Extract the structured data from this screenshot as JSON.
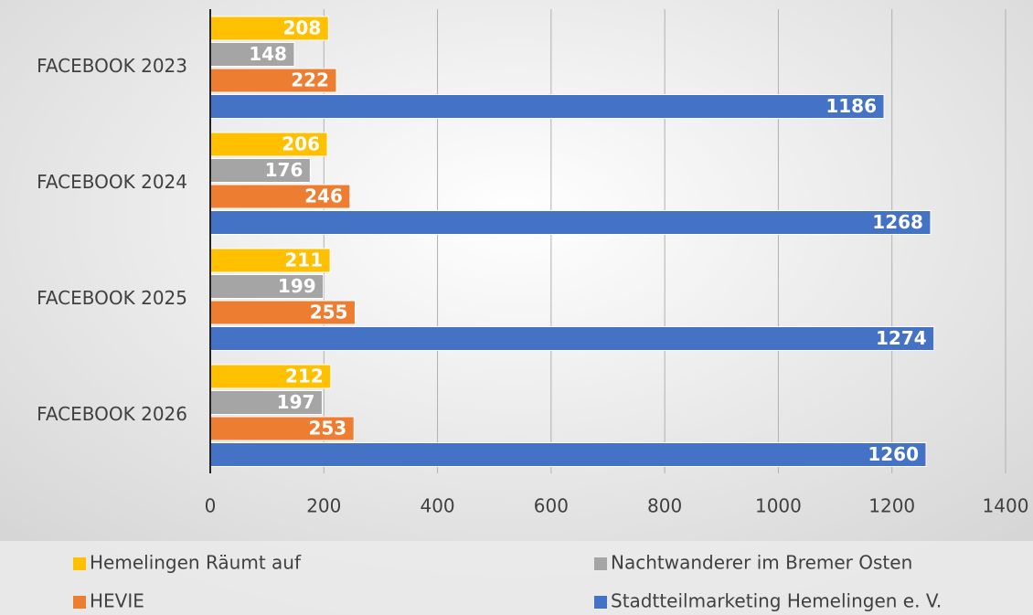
{
  "chart_data": {
    "type": "bar",
    "orientation": "horizontal",
    "categories": [
      "FACEBOOK 2023",
      "FACEBOOK 2024",
      "FACEBOOK 2025",
      "FACEBOOK 2026"
    ],
    "series": [
      {
        "name": "Hemelingen Räumt auf",
        "color": "#ffc000",
        "values": [
          208,
          206,
          211,
          212
        ]
      },
      {
        "name": "Nachtwanderer im Bremer Osten",
        "color": "#a5a5a5",
        "values": [
          148,
          176,
          199,
          197
        ]
      },
      {
        "name": "HEVIE",
        "color": "#ed7d31",
        "values": [
          222,
          246,
          255,
          253
        ]
      },
      {
        "name": "Stadtteilmarketing Hemelingen e. V.",
        "color": "#4472c4",
        "values": [
          1186,
          1268,
          1274,
          1260
        ]
      }
    ],
    "xlim": [
      0,
      1400
    ],
    "xticks": [
      0,
      200,
      400,
      600,
      800,
      1000,
      1200,
      1400
    ],
    "grid": true,
    "legend": "bottom"
  }
}
